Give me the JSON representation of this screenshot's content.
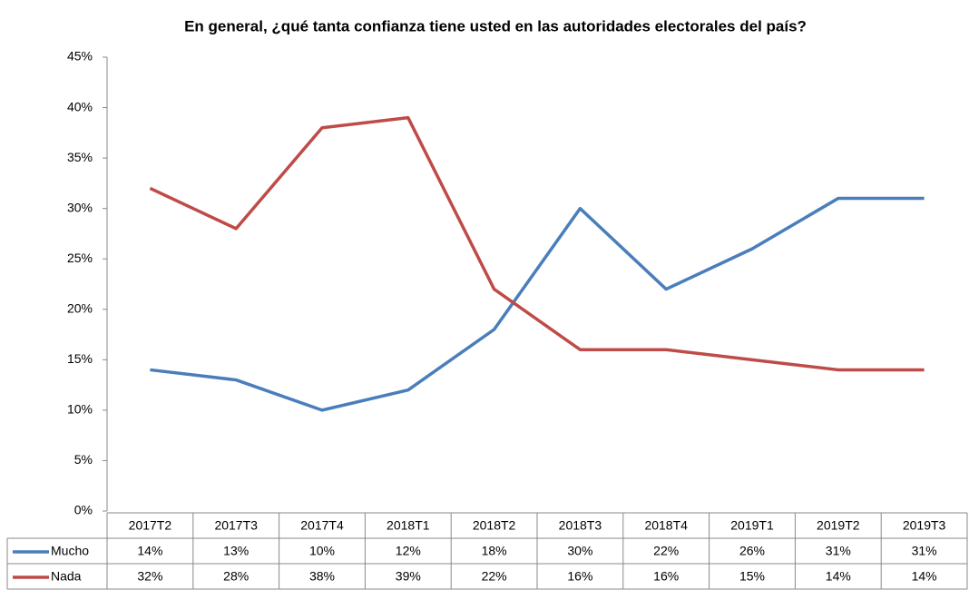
{
  "chart_data": {
    "type": "line",
    "title": "En general, ¿qué tanta confianza tiene usted en las autoridades electorales del país?",
    "categories": [
      "2017T2",
      "2017T3",
      "2017T4",
      "2018T1",
      "2018T2",
      "2018T3",
      "2018T4",
      "2019T1",
      "2019T2",
      "2019T3"
    ],
    "series": [
      {
        "name": "Mucho",
        "color": "#4a7ebb",
        "values": [
          14,
          13,
          10,
          12,
          18,
          30,
          22,
          26,
          31,
          31
        ],
        "value_labels": [
          "14%",
          "13%",
          "10%",
          "12%",
          "18%",
          "30%",
          "22%",
          "26%",
          "31%",
          "31%"
        ]
      },
      {
        "name": "Nada",
        "color": "#be4b48",
        "values": [
          32,
          28,
          38,
          39,
          22,
          16,
          16,
          15,
          14,
          14
        ],
        "value_labels": [
          "32%",
          "28%",
          "38%",
          "39%",
          "22%",
          "16%",
          "16%",
          "15%",
          "14%",
          "14%"
        ]
      }
    ],
    "ylim": [
      0,
      45
    ],
    "yticks": [
      {
        "value": 0,
        "label": "0%"
      },
      {
        "value": 5,
        "label": "5%"
      },
      {
        "value": 10,
        "label": "10%"
      },
      {
        "value": 15,
        "label": "15%"
      },
      {
        "value": 20,
        "label": "20%"
      },
      {
        "value": 25,
        "label": "25%"
      },
      {
        "value": 30,
        "label": "30%"
      },
      {
        "value": 35,
        "label": "35%"
      },
      {
        "value": 40,
        "label": "40%"
      },
      {
        "value": 45,
        "label": "45%"
      }
    ],
    "grid": false
  }
}
